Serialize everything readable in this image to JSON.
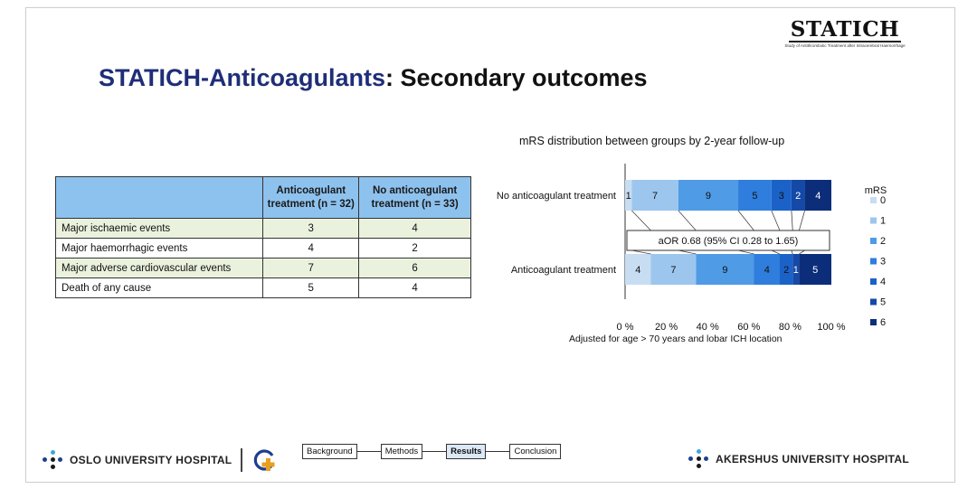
{
  "logo": {
    "name": "STATICH",
    "subtitle": "Study of Antithrombotic Treatment after Intracerebral Haemorrhage"
  },
  "title": {
    "part1": "STATICH-Anticoagulants",
    "part2": ": Secondary outcomes"
  },
  "table": {
    "headers": [
      "",
      "Anticoagulant treatment (n = 32)",
      "No anticoagulant treatment (n = 33)"
    ],
    "rows": [
      {
        "label": "Major ischaemic events",
        "a": "3",
        "b": "4"
      },
      {
        "label": "Major haemorrhagic events",
        "a": "4",
        "b": "2"
      },
      {
        "label": "Major adverse cardiovascular events",
        "a": "7",
        "b": "6"
      },
      {
        "label": "Death of any cause",
        "a": "5",
        "b": "4"
      }
    ]
  },
  "chart_data": {
    "type": "bar",
    "orientation": "horizontal",
    "stacked": true,
    "title": "mRS distribution between groups by 2-year follow-up",
    "legend_title": "mRS",
    "legend_position": "right",
    "categories": [
      "No anticoagulant treatment",
      "Anticoagulant treatment"
    ],
    "series": [
      {
        "name": "0",
        "values": [
          1,
          4
        ],
        "color": "#c7ddf2"
      },
      {
        "name": "1",
        "values": [
          7,
          7
        ],
        "color": "#9dc6ee"
      },
      {
        "name": "2",
        "values": [
          9,
          9
        ],
        "color": "#4f9be6"
      },
      {
        "name": "3",
        "values": [
          5,
          4
        ],
        "color": "#2f7ddc"
      },
      {
        "name": "4",
        "values": [
          3,
          2
        ],
        "color": "#1b62c8"
      },
      {
        "name": "5",
        "values": [
          2,
          1
        ],
        "color": "#1549a8"
      },
      {
        "name": "6",
        "values": [
          4,
          5
        ],
        "color": "#0c2d7a"
      }
    ],
    "x_ticks": [
      "0 %",
      "20 %",
      "40 %",
      "60 %",
      "80 %",
      "100 %"
    ],
    "xlim": [
      0,
      100
    ],
    "annotation": "aOR 0.68 (95% CI 0.28 to 1.65)",
    "footnote": "Adjusted for age > 70 years and lobar ICH location"
  },
  "footer": {
    "left_hospital": "OSLO UNIVERSITY HOSPITAL",
    "right_hospital": "AKERSHUS UNIVERSITY HOSPITAL",
    "nav": [
      {
        "label": "Background",
        "active": false
      },
      {
        "label": "Methods",
        "active": false
      },
      {
        "label": "Results",
        "active": true
      },
      {
        "label": "Conclusion",
        "active": false
      }
    ],
    "colors": {
      "dot_blue": "#1f3f8f",
      "dot_cyan": "#3aa6e0",
      "dot_dark": "#1a1a1a",
      "cross_orange": "#e8a020",
      "ring_blue": "#1f3f8f"
    }
  }
}
